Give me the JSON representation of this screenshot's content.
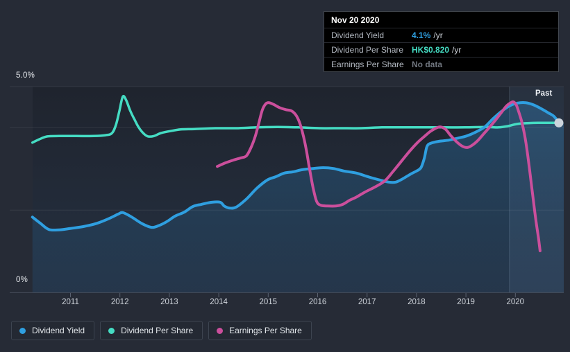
{
  "colors": {
    "page_bg": "#262b36",
    "accent_blue": "#2f9fe0",
    "accent_teal": "#45dcc3",
    "accent_pink": "#cb4f9c",
    "axis_text": "#e6e9ed",
    "year_text": "#ced3da",
    "no_data_text": "#70767f"
  },
  "tooltip": {
    "date": "Nov 20 2020",
    "rows": [
      {
        "label": "Dividend Yield",
        "value": "4.1%",
        "suffix": "/yr",
        "value_color": "#2f9fe0"
      },
      {
        "label": "Dividend Per Share",
        "value": "HK$0.820",
        "suffix": "/yr",
        "value_color": "#45dcc3"
      },
      {
        "label": "Earnings Per Share",
        "value": "No data",
        "suffix": "",
        "value_color": "#70767f"
      }
    ]
  },
  "axes": {
    "y_top_label": "5.0%",
    "y_bottom_label": "0%",
    "years": [
      "2011",
      "2012",
      "2013",
      "2014",
      "2015",
      "2016",
      "2017",
      "2018",
      "2019",
      "2020"
    ],
    "past_label": "Past"
  },
  "legend": {
    "items": [
      {
        "label": "Dividend Yield",
        "color": "#2f9fe0"
      },
      {
        "label": "Dividend Per Share",
        "color": "#45dcc3"
      },
      {
        "label": "Earnings Per Share",
        "color": "#cb4f9c"
      }
    ]
  },
  "chart_data": {
    "type": "line",
    "x_unit": "year",
    "y_unit": "percent",
    "xlim": [
      2010.2,
      2020.95
    ],
    "ylim": [
      0,
      5
    ],
    "grid_percents": [
      5,
      4,
      2
    ],
    "past_region_start_year": 2019.88,
    "end_marker": {
      "year": 2020.88,
      "value": 4.12
    },
    "series": [
      {
        "name": "Dividend Yield",
        "color": "#2f9fe0",
        "fill": true,
        "width": 4,
        "points": [
          [
            2010.23,
            1.83
          ],
          [
            2010.39,
            1.68
          ],
          [
            2010.56,
            1.53
          ],
          [
            2010.77,
            1.52
          ],
          [
            2010.98,
            1.55
          ],
          [
            2011.26,
            1.6
          ],
          [
            2011.54,
            1.68
          ],
          [
            2011.79,
            1.8
          ],
          [
            2011.96,
            1.9
          ],
          [
            2012.06,
            1.94
          ],
          [
            2012.24,
            1.83
          ],
          [
            2012.45,
            1.67
          ],
          [
            2012.64,
            1.58
          ],
          [
            2012.78,
            1.62
          ],
          [
            2012.95,
            1.72
          ],
          [
            2013.11,
            1.85
          ],
          [
            2013.3,
            1.95
          ],
          [
            2013.48,
            2.09
          ],
          [
            2013.65,
            2.14
          ],
          [
            2013.86,
            2.19
          ],
          [
            2014.03,
            2.19
          ],
          [
            2014.11,
            2.1
          ],
          [
            2014.21,
            2.05
          ],
          [
            2014.35,
            2.07
          ],
          [
            2014.56,
            2.27
          ],
          [
            2014.77,
            2.53
          ],
          [
            2014.98,
            2.73
          ],
          [
            2015.15,
            2.81
          ],
          [
            2015.33,
            2.9
          ],
          [
            2015.5,
            2.93
          ],
          [
            2015.68,
            2.98
          ],
          [
            2015.9,
            3.01
          ],
          [
            2016.11,
            3.03
          ],
          [
            2016.32,
            3.01
          ],
          [
            2016.53,
            2.95
          ],
          [
            2016.78,
            2.9
          ],
          [
            2017.02,
            2.81
          ],
          [
            2017.26,
            2.73
          ],
          [
            2017.44,
            2.68
          ],
          [
            2017.58,
            2.68
          ],
          [
            2017.72,
            2.76
          ],
          [
            2017.89,
            2.88
          ],
          [
            2018.0,
            2.95
          ],
          [
            2018.09,
            3.03
          ],
          [
            2018.16,
            3.27
          ],
          [
            2018.21,
            3.54
          ],
          [
            2018.28,
            3.62
          ],
          [
            2018.45,
            3.67
          ],
          [
            2018.66,
            3.7
          ],
          [
            2018.84,
            3.75
          ],
          [
            2019.01,
            3.8
          ],
          [
            2019.19,
            3.89
          ],
          [
            2019.38,
            4.02
          ],
          [
            2019.54,
            4.21
          ],
          [
            2019.71,
            4.39
          ],
          [
            2019.88,
            4.53
          ],
          [
            2020.04,
            4.6
          ],
          [
            2020.21,
            4.61
          ],
          [
            2020.36,
            4.56
          ],
          [
            2020.53,
            4.46
          ],
          [
            2020.67,
            4.36
          ],
          [
            2020.78,
            4.28
          ],
          [
            2020.88,
            4.12
          ]
        ]
      },
      {
        "name": "Dividend Per Share",
        "color": "#45dcc3",
        "fill": false,
        "width": 3.5,
        "points": [
          [
            2010.23,
            3.64
          ],
          [
            2010.37,
            3.72
          ],
          [
            2010.53,
            3.79
          ],
          [
            2010.77,
            3.8
          ],
          [
            2011.12,
            3.8
          ],
          [
            2011.47,
            3.8
          ],
          [
            2011.71,
            3.82
          ],
          [
            2011.84,
            3.87
          ],
          [
            2011.92,
            4.07
          ],
          [
            2011.99,
            4.41
          ],
          [
            2012.06,
            4.76
          ],
          [
            2012.13,
            4.66
          ],
          [
            2012.21,
            4.41
          ],
          [
            2012.3,
            4.19
          ],
          [
            2012.38,
            4.01
          ],
          [
            2012.48,
            3.86
          ],
          [
            2012.57,
            3.79
          ],
          [
            2012.69,
            3.8
          ],
          [
            2012.83,
            3.87
          ],
          [
            2013.02,
            3.92
          ],
          [
            2013.23,
            3.96
          ],
          [
            2013.51,
            3.97
          ],
          [
            2013.93,
            3.99
          ],
          [
            2014.35,
            3.99
          ],
          [
            2014.77,
            4.01
          ],
          [
            2015.19,
            4.02
          ],
          [
            2015.61,
            4.01
          ],
          [
            2016.04,
            3.99
          ],
          [
            2016.46,
            3.99
          ],
          [
            2016.88,
            3.99
          ],
          [
            2017.3,
            4.01
          ],
          [
            2017.72,
            4.01
          ],
          [
            2018.14,
            4.01
          ],
          [
            2018.56,
            4.01
          ],
          [
            2018.98,
            4.01
          ],
          [
            2019.41,
            4.02
          ],
          [
            2019.66,
            4.01
          ],
          [
            2019.85,
            4.04
          ],
          [
            2020.02,
            4.09
          ],
          [
            2020.19,
            4.11
          ],
          [
            2020.46,
            4.12
          ],
          [
            2020.92,
            4.12
          ]
        ]
      },
      {
        "name": "Earnings Per Share",
        "color": "#cb4f9c",
        "fill": false,
        "width": 4,
        "points": [
          [
            2013.97,
            3.06
          ],
          [
            2014.14,
            3.15
          ],
          [
            2014.31,
            3.22
          ],
          [
            2014.45,
            3.27
          ],
          [
            2014.56,
            3.32
          ],
          [
            2014.66,
            3.54
          ],
          [
            2014.74,
            3.8
          ],
          [
            2014.81,
            4.11
          ],
          [
            2014.88,
            4.43
          ],
          [
            2014.95,
            4.58
          ],
          [
            2015.02,
            4.61
          ],
          [
            2015.12,
            4.56
          ],
          [
            2015.23,
            4.49
          ],
          [
            2015.36,
            4.44
          ],
          [
            2015.47,
            4.41
          ],
          [
            2015.56,
            4.31
          ],
          [
            2015.63,
            4.14
          ],
          [
            2015.7,
            3.86
          ],
          [
            2015.77,
            3.47
          ],
          [
            2015.84,
            2.98
          ],
          [
            2015.91,
            2.53
          ],
          [
            2015.98,
            2.21
          ],
          [
            2016.06,
            2.12
          ],
          [
            2016.2,
            2.1
          ],
          [
            2016.37,
            2.1
          ],
          [
            2016.51,
            2.14
          ],
          [
            2016.65,
            2.24
          ],
          [
            2016.79,
            2.32
          ],
          [
            2016.96,
            2.44
          ],
          [
            2017.16,
            2.56
          ],
          [
            2017.36,
            2.71
          ],
          [
            2017.52,
            2.93
          ],
          [
            2017.69,
            3.18
          ],
          [
            2017.86,
            3.43
          ],
          [
            2018.02,
            3.64
          ],
          [
            2018.16,
            3.79
          ],
          [
            2018.28,
            3.91
          ],
          [
            2018.39,
            3.99
          ],
          [
            2018.49,
            4.02
          ],
          [
            2018.59,
            3.96
          ],
          [
            2018.7,
            3.8
          ],
          [
            2018.82,
            3.65
          ],
          [
            2018.93,
            3.55
          ],
          [
            2019.03,
            3.52
          ],
          [
            2019.12,
            3.57
          ],
          [
            2019.24,
            3.69
          ],
          [
            2019.35,
            3.84
          ],
          [
            2019.46,
            3.99
          ],
          [
            2019.58,
            4.16
          ],
          [
            2019.71,
            4.36
          ],
          [
            2019.82,
            4.53
          ],
          [
            2019.91,
            4.61
          ],
          [
            2019.96,
            4.63
          ],
          [
            2020.02,
            4.55
          ],
          [
            2020.07,
            4.38
          ],
          [
            2020.13,
            4.14
          ],
          [
            2020.2,
            3.74
          ],
          [
            2020.27,
            3.15
          ],
          [
            2020.34,
            2.47
          ],
          [
            2020.41,
            1.8
          ],
          [
            2020.47,
            1.3
          ],
          [
            2020.5,
            1.01
          ]
        ]
      }
    ]
  }
}
